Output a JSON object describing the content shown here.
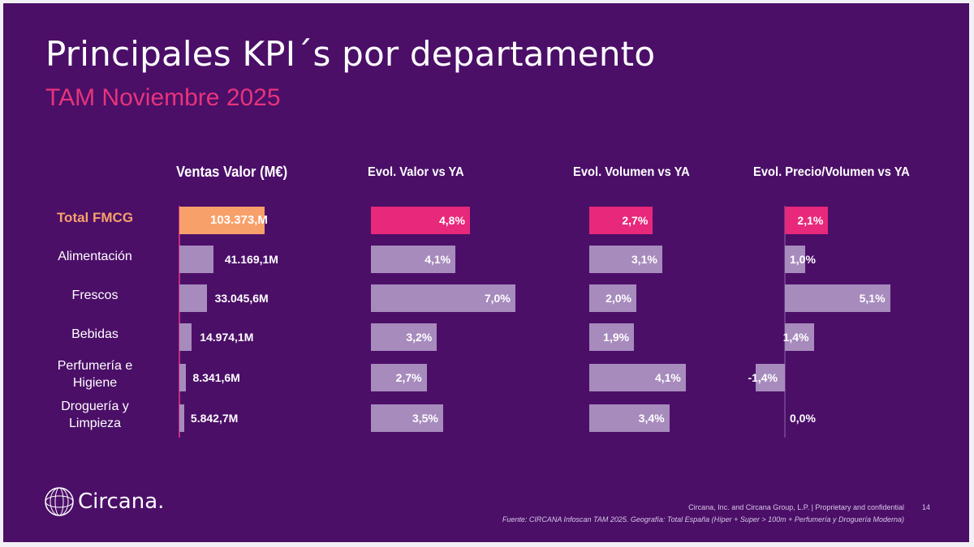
{
  "title": "Principales KPI´s por departamento",
  "subtitle": "TAM Noviembre 2025",
  "colors": {
    "background": "#4b0f68",
    "highlight_total_sales": "#f7a06a",
    "highlight_total_pct": "#e8287a",
    "bar": "#a78bbd",
    "subtitle": "#e8337b"
  },
  "chart_data": {
    "type": "bar",
    "orientation": "horizontal",
    "categories": [
      "Total FMCG",
      "Alimentación",
      "Frescos",
      "Bebidas",
      "Perfumería e Higiene",
      "Droguería y Limpieza"
    ],
    "panels": [
      {
        "title": "Ventas Valor (M€)",
        "values": [
          103373,
          41169.1,
          33045.6,
          14974.1,
          8341.6,
          5842.7
        ],
        "labels": [
          "103.373,M",
          "41.169,1M",
          "33.045,6M",
          "14.974,1M",
          "8.341,6M",
          "5.842,7M"
        ]
      },
      {
        "title": "Evol. Valor vs YA",
        "values": [
          4.8,
          4.1,
          7.0,
          3.2,
          2.7,
          3.5
        ],
        "labels": [
          "4,8%",
          "4,1%",
          "7,0%",
          "3,2%",
          "2,7%",
          "3,5%"
        ]
      },
      {
        "title": "Evol. Volumen vs YA",
        "values": [
          2.7,
          3.1,
          2.0,
          1.9,
          4.1,
          3.4
        ],
        "labels": [
          "2,7%",
          "3,1%",
          "2,0%",
          "1,9%",
          "4,1%",
          "3,4%"
        ]
      },
      {
        "title": "Evol. Precio/Volumen vs YA",
        "values": [
          2.1,
          1.0,
          5.1,
          1.4,
          -1.4,
          0.0
        ],
        "labels": [
          "2,1%",
          "1,0%",
          "5,1%",
          "1,4%",
          "-1,4%",
          "0,0%"
        ]
      }
    ],
    "grid": false,
    "legend": "none"
  },
  "rows": [
    [
      "Total FMCG"
    ],
    [
      "Alimentación"
    ],
    [
      "Frescos"
    ],
    [
      "Bebidas"
    ],
    [
      "Perfumería e",
      "Higiene"
    ],
    [
      "Droguería y",
      "Limpieza"
    ]
  ],
  "footer": {
    "company": "Circana, Inc. and Circana Group, L.P. |  Proprietary and confidential",
    "page": "14",
    "source": "Fuente: CIRCANA Infoscan TAM 2025. Geografía: Total España (Híper + Super > 100m + Perfumería y Droguería Moderna)",
    "logo_text": "Circana."
  }
}
